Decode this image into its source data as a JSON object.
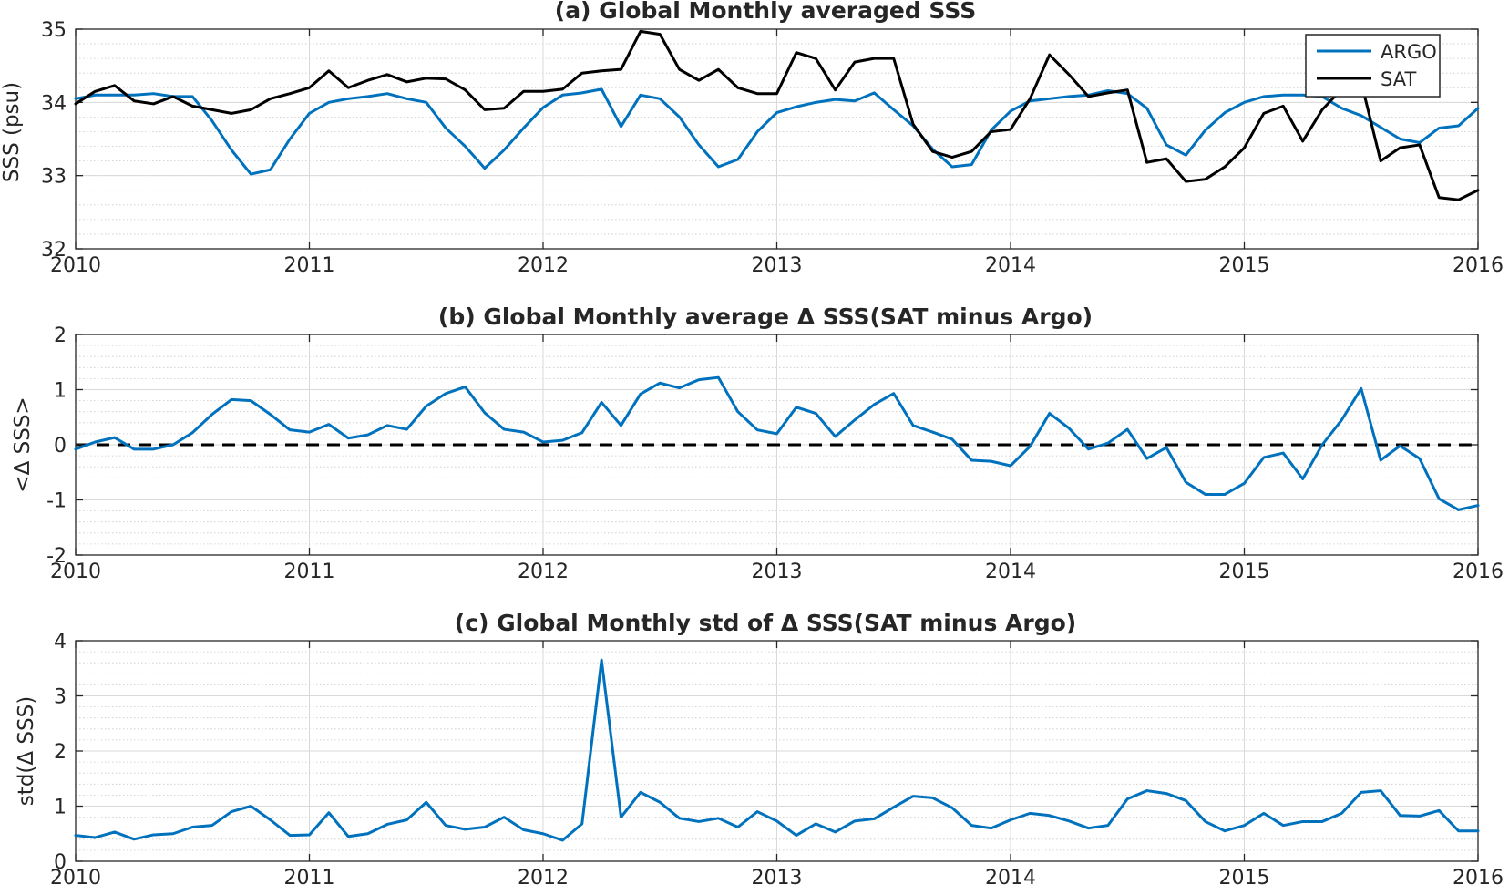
{
  "colors": {
    "argo": "#0072BD",
    "sat": "#000000",
    "zero_line": "#000000",
    "grid_major": "#d9d9d9",
    "grid_minor": "#c8c8c8",
    "axes": "#262626"
  },
  "chart_data": [
    {
      "type": "line",
      "title": "(a) Global Monthly averaged SSS",
      "xlabel": "",
      "ylabel": "SSS (psu)",
      "xlim": [
        2010,
        2016
      ],
      "ylim": [
        32,
        35
      ],
      "xticks": [
        "2010",
        "2011",
        "2012",
        "2013",
        "2014",
        "2015",
        "2016"
      ],
      "yticks": [
        "32",
        "33",
        "34",
        "35"
      ],
      "grid": "on, with minor grid",
      "legend": "top-right",
      "x_start": 2010.0,
      "x_step_months": 1,
      "series": [
        {
          "name": "ARGO",
          "color": "#0072BD",
          "values": [
            34.05,
            34.1,
            34.1,
            34.1,
            34.12,
            34.08,
            34.08,
            33.75,
            33.35,
            33.02,
            33.08,
            33.5,
            33.85,
            34.0,
            34.05,
            34.08,
            34.12,
            34.05,
            34.0,
            33.65,
            33.4,
            33.1,
            33.35,
            33.65,
            33.93,
            34.1,
            34.13,
            34.18,
            33.67,
            34.1,
            34.05,
            33.8,
            33.42,
            33.12,
            33.22,
            33.6,
            33.86,
            33.94,
            34.0,
            34.04,
            34.02,
            34.13,
            33.9,
            33.68,
            33.36,
            33.12,
            33.15,
            33.62,
            33.88,
            34.02,
            34.05,
            34.08,
            34.1,
            34.16,
            34.12,
            33.92,
            33.42,
            33.28,
            33.62,
            33.86,
            34.0,
            34.08,
            34.1,
            34.1,
            34.08,
            33.92,
            33.82,
            33.66,
            33.5,
            33.45,
            33.65,
            33.68,
            33.92
          ]
        },
        {
          "name": "SAT",
          "color": "#000000",
          "values": [
            33.98,
            34.15,
            34.23,
            34.02,
            33.98,
            34.08,
            33.95,
            33.9,
            33.85,
            33.9,
            34.05,
            34.12,
            34.2,
            34.43,
            34.2,
            34.3,
            34.38,
            34.28,
            34.33,
            34.32,
            34.17,
            33.9,
            33.92,
            34.15,
            34.15,
            34.18,
            34.4,
            34.43,
            34.45,
            34.97,
            34.93,
            34.45,
            34.3,
            34.45,
            34.2,
            34.12,
            34.12,
            34.68,
            34.6,
            34.17,
            34.55,
            34.6,
            34.6,
            33.7,
            33.33,
            33.25,
            33.33,
            33.6,
            33.63,
            34.05,
            34.65,
            34.38,
            34.08,
            34.13,
            34.17,
            33.18,
            33.23,
            32.92,
            32.95,
            33.12,
            33.38,
            33.85,
            33.95,
            33.47,
            33.9,
            34.18,
            34.28,
            33.2,
            33.38,
            33.42,
            32.7,
            32.67,
            32.8
          ]
        }
      ]
    },
    {
      "type": "line",
      "title": "(b) Global Monthly average Δ SSS(SAT minus Argo)",
      "xlabel": "",
      "ylabel": "<Δ SSS>",
      "xlim": [
        2010,
        2016
      ],
      "ylim": [
        -2,
        2
      ],
      "xticks": [
        "2010",
        "2011",
        "2012",
        "2013",
        "2014",
        "2015",
        "2016"
      ],
      "yticks": [
        "-2",
        "-1",
        "0",
        "1",
        "2"
      ],
      "grid": "on, with minor grid",
      "reference_line": 0,
      "x_start": 2010.0,
      "x_step_months": 1,
      "series": [
        {
          "color": "#0072BD",
          "values": [
            -0.08,
            0.05,
            0.13,
            -0.08,
            -0.08,
            0.0,
            0.22,
            0.55,
            0.82,
            0.8,
            0.55,
            0.27,
            0.23,
            0.37,
            0.12,
            0.18,
            0.35,
            0.28,
            0.7,
            0.93,
            1.05,
            0.58,
            0.28,
            0.23,
            0.05,
            0.08,
            0.22,
            0.77,
            0.35,
            0.92,
            1.12,
            1.03,
            1.18,
            1.22,
            0.6,
            0.27,
            0.2,
            0.68,
            0.57,
            0.15,
            0.45,
            0.73,
            0.93,
            0.35,
            0.23,
            0.1,
            -0.28,
            -0.3,
            -0.38,
            -0.03,
            0.57,
            0.3,
            -0.08,
            0.03,
            0.28,
            -0.25,
            -0.05,
            -0.68,
            -0.9,
            -0.9,
            -0.7,
            -0.23,
            -0.15,
            -0.62,
            0.0,
            0.45,
            1.02,
            -0.28,
            -0.02,
            -0.25,
            -0.98,
            -1.18,
            -1.1
          ]
        }
      ]
    },
    {
      "type": "line",
      "title": "(c) Global Monthly std of Δ SSS(SAT minus Argo)",
      "xlabel": "",
      "ylabel": "std(Δ SSS)",
      "xlim": [
        2010,
        2016
      ],
      "ylim": [
        0,
        4
      ],
      "xticks": [
        "2010",
        "2011",
        "2012",
        "2013",
        "2014",
        "2015",
        "2016"
      ],
      "yticks": [
        "0",
        "1",
        "2",
        "3",
        "4"
      ],
      "grid": "on, with minor grid",
      "x_start": 2010.0,
      "x_step_months": 1,
      "series": [
        {
          "color": "#0072BD",
          "values": [
            0.47,
            0.43,
            0.53,
            0.4,
            0.48,
            0.5,
            0.62,
            0.65,
            0.9,
            1.0,
            0.75,
            0.47,
            0.48,
            0.88,
            0.45,
            0.5,
            0.67,
            0.75,
            1.07,
            0.65,
            0.58,
            0.62,
            0.8,
            0.57,
            0.5,
            0.38,
            0.68,
            3.65,
            0.8,
            1.25,
            1.07,
            0.78,
            0.72,
            0.78,
            0.62,
            0.9,
            0.73,
            0.47,
            0.68,
            0.53,
            0.73,
            0.77,
            0.98,
            1.18,
            1.15,
            0.97,
            0.65,
            0.6,
            0.75,
            0.87,
            0.83,
            0.73,
            0.6,
            0.65,
            1.13,
            1.28,
            1.23,
            1.1,
            0.72,
            0.55,
            0.65,
            0.87,
            0.65,
            0.72,
            0.72,
            0.87,
            1.25,
            1.28,
            0.83,
            0.82,
            0.92,
            0.55,
            0.55
          ]
        }
      ]
    }
  ]
}
